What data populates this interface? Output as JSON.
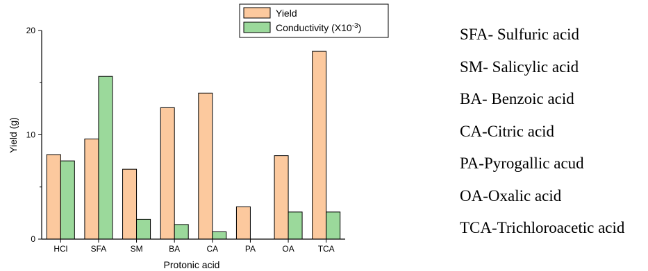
{
  "chart_data": {
    "type": "bar",
    "categories": [
      "HCl",
      "SFA",
      "SM",
      "BA",
      "CA",
      "PA",
      "OA",
      "TCA"
    ],
    "series": [
      {
        "name": "Yield",
        "color": "#fcc99e",
        "values": [
          8.1,
          9.6,
          6.7,
          12.6,
          14.0,
          3.1,
          8.0,
          18.0
        ]
      },
      {
        "name": "Conductivity (X10",
        "name_sup": "-3",
        "name_suffix": ")",
        "color": "#9bd99b",
        "values": [
          7.5,
          15.6,
          1.9,
          1.4,
          0.7,
          0,
          2.6,
          2.6
        ]
      }
    ],
    "xlabel": "Protonic acid",
    "ylabel": "Yield (g)",
    "ylim": [
      0,
      20
    ],
    "yticks": [
      0,
      10,
      20
    ],
    "grid": false,
    "legend_position": "top"
  },
  "abbreviations": [
    "SFA- Sulfuric acid",
    "SM- Salicylic acid",
    "BA- Benzoic acid",
    "CA-Citric acid",
    "PA-Pyrogallic acud",
    "OA-Oxalic acid",
    "TCA-Trichloroacetic acid"
  ]
}
